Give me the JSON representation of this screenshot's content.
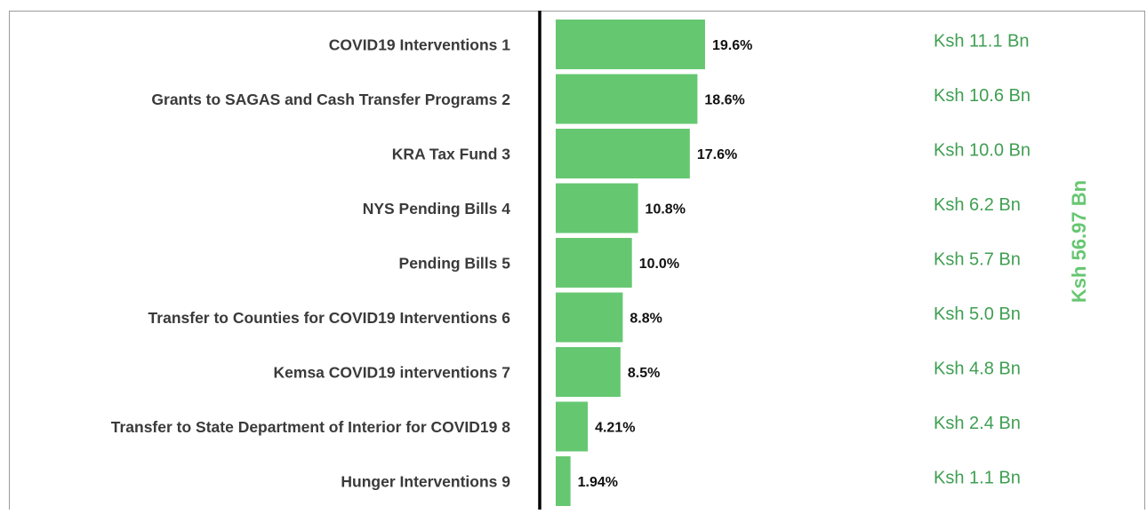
{
  "chart_data": {
    "type": "bar",
    "orientation": "horizontal",
    "categories": [
      "COVID19 Interventions 1",
      "Grants to SAGAS and Cash Transfer Programs 2",
      "KRA Tax Fund 3",
      "NYS Pending Bills 4",
      "Pending Bills 5",
      "Transfer to Counties for COVID19 Interventions 6",
      "Kemsa COVID19 interventions 7",
      "Transfer to State Department of Interior for COVID19 8",
      "Hunger Interventions 9"
    ],
    "values": [
      19.6,
      18.6,
      17.6,
      10.8,
      10.0,
      8.8,
      8.5,
      4.21,
      1.94
    ],
    "value_labels": [
      "19.6%",
      "18.6%",
      "17.6%",
      "10.8%",
      "10.0%",
      "8.8%",
      "8.5%",
      "4.21%",
      "1.94%"
    ],
    "amounts": [
      "Ksh 11.1 Bn",
      "Ksh 10.6 Bn",
      "Ksh 10.0 Bn",
      "Ksh 6.2 Bn",
      "Ksh 5.7 Bn",
      "Ksh 5.0 Bn",
      "Ksh 4.8 Bn",
      "Ksh 2.4 Bn",
      "Ksh 1.1 Bn"
    ],
    "total": "Ksh 56.97 Bn",
    "color": "#66c771"
  }
}
